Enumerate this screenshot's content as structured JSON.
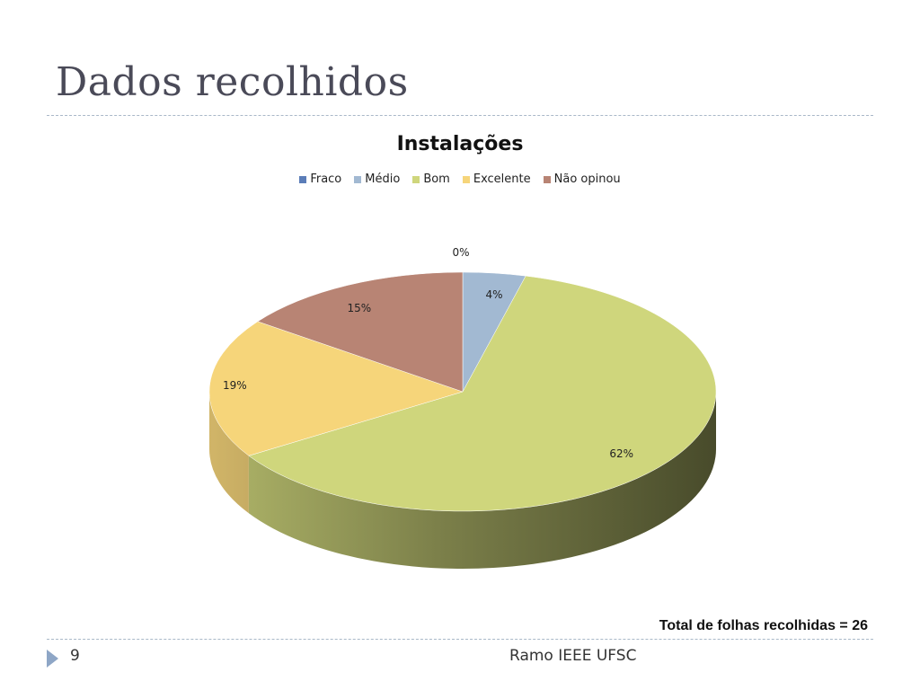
{
  "slide": {
    "title": "Dados recolhidos",
    "page_number": "9",
    "footer": "Ramo IEEE UFSC",
    "note": "Total de folhas recolhidas = 26"
  },
  "chart_data": {
    "type": "pie",
    "title": "Instalações",
    "legend_position": "top",
    "three_d": true,
    "categories": [
      "Fraco",
      "Médio",
      "Bom",
      "Excelente",
      "Não opinou"
    ],
    "values": [
      0,
      4,
      62,
      19,
      15
    ],
    "labels": [
      "0%",
      "4%",
      "62%",
      "19%",
      "15%"
    ],
    "colors": [
      "#5b7db8",
      "#a2b9d2",
      "#cfd67c",
      "#f6d57a",
      "#b88474"
    ]
  }
}
